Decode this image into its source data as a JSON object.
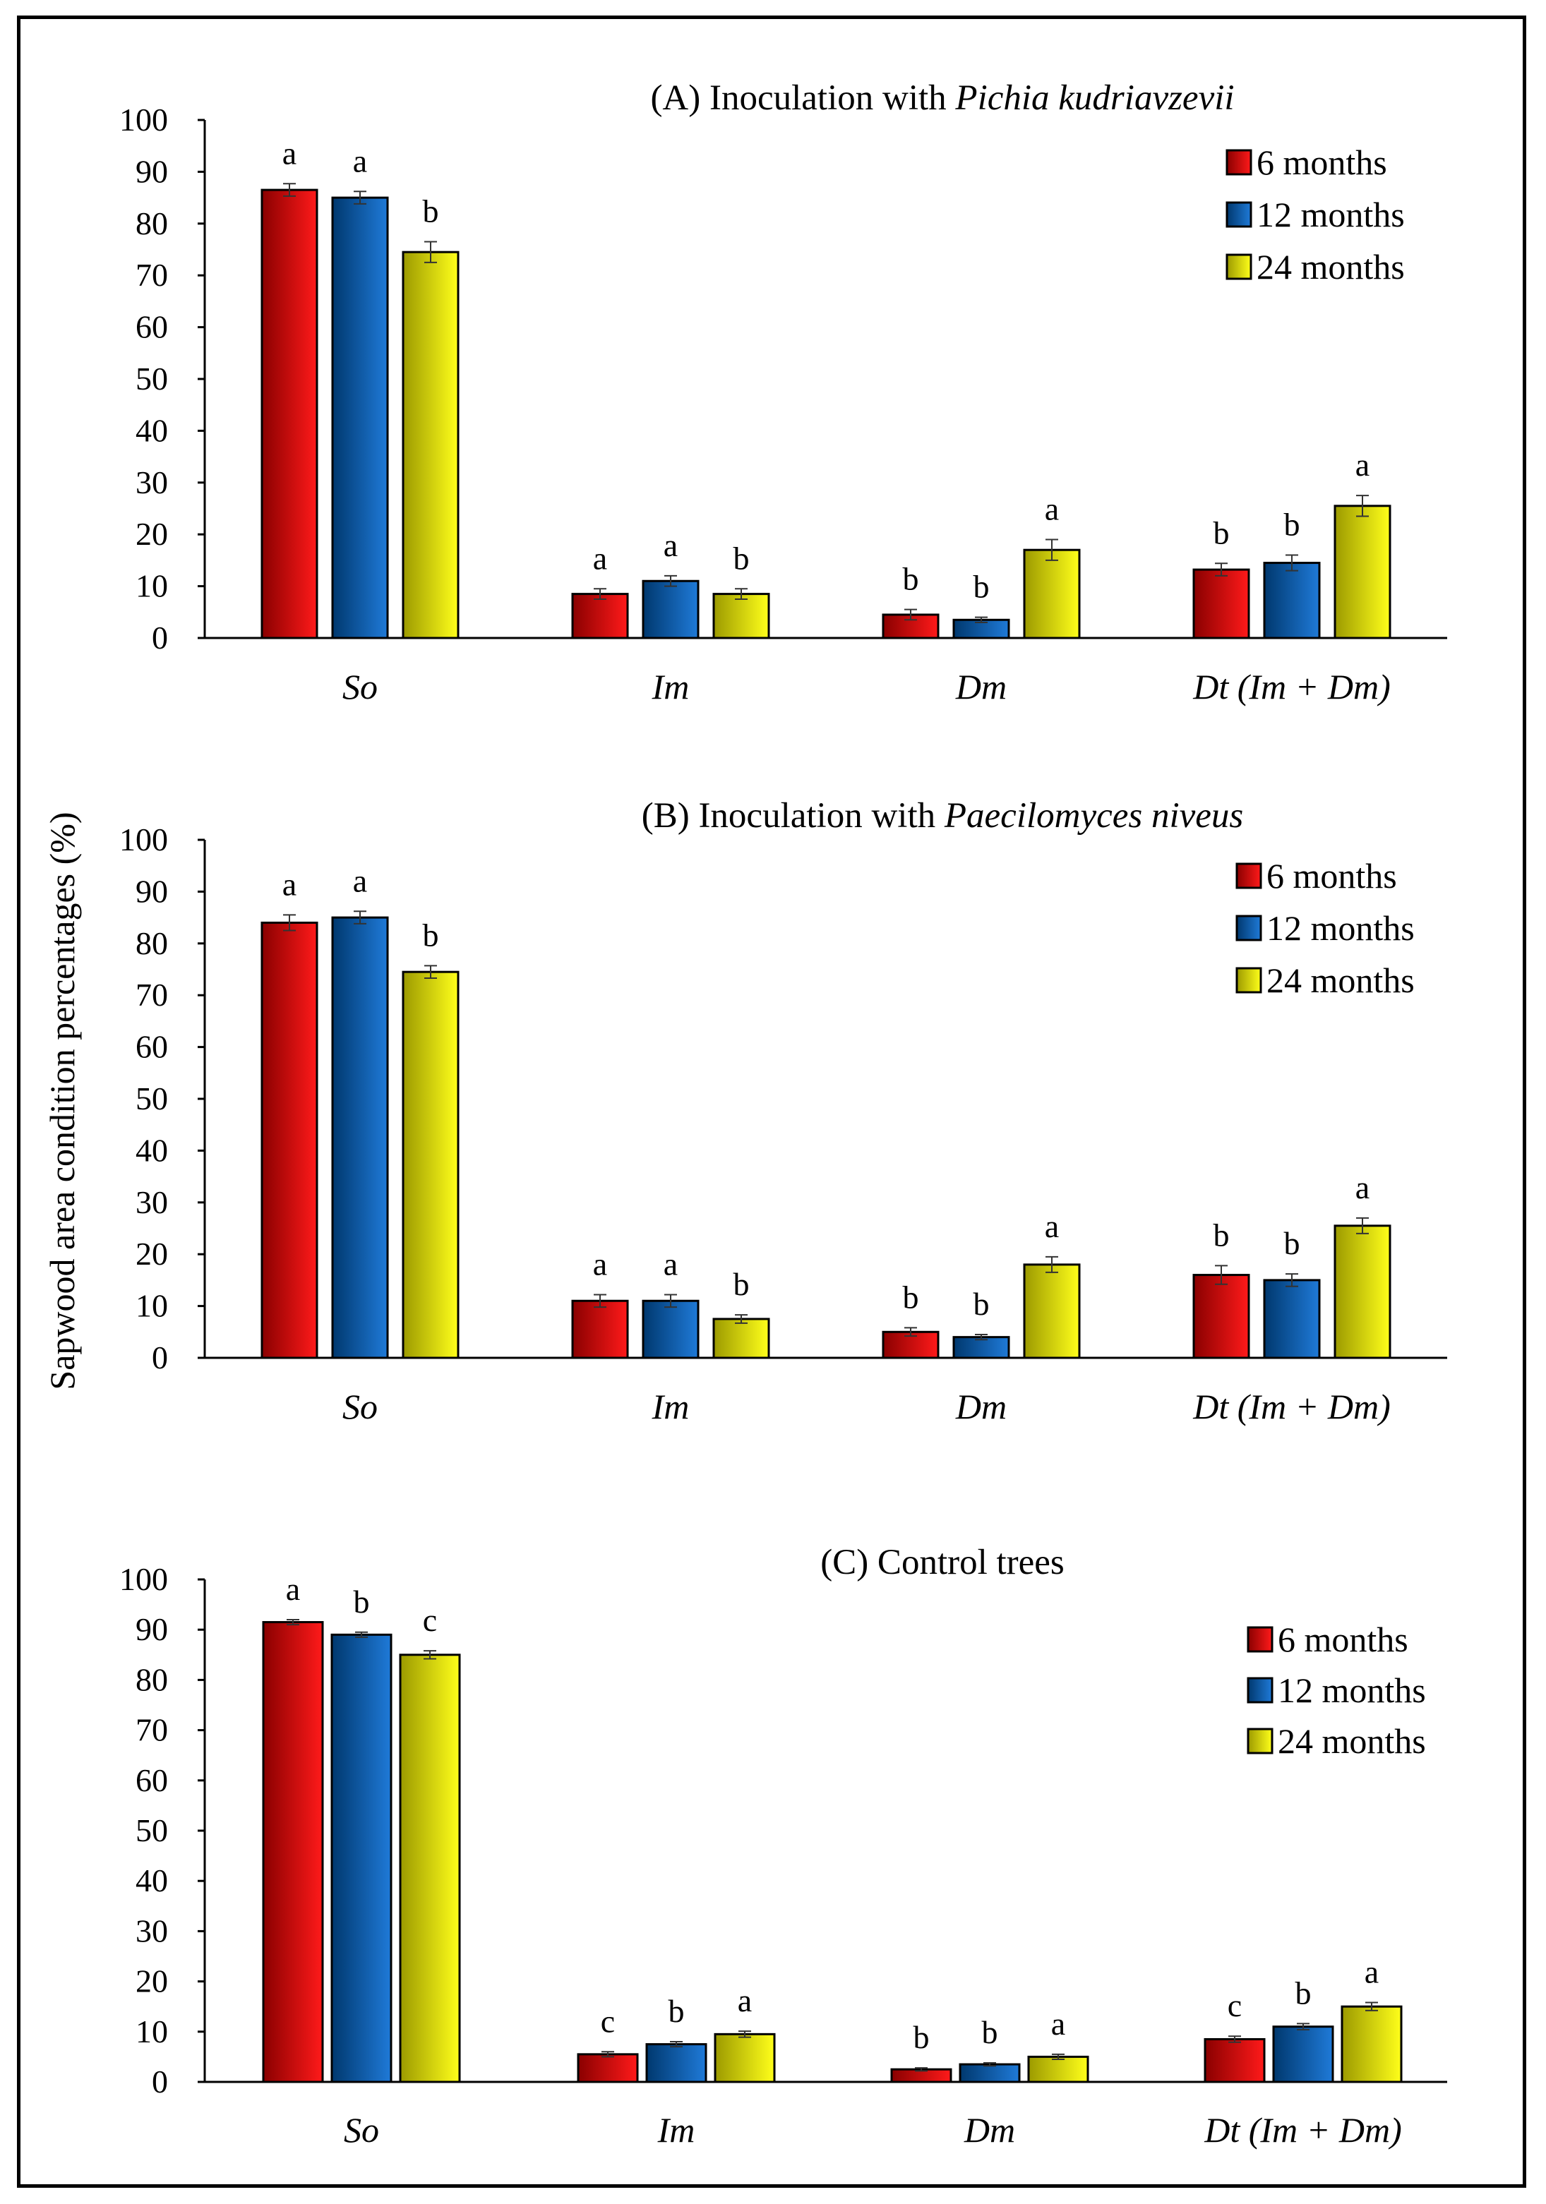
{
  "y_axis_label": "Sapwood area condition percentages (%)",
  "colors": {
    "6 months": "#e00000",
    "12 months": "#0a5fb4",
    "24 months": "#f0ec00"
  },
  "chart_data": [
    {
      "type": "bar",
      "title_prefix": "(A) Inoculation with ",
      "title_italic": "Pichia kudriavzevii",
      "categories": [
        "So",
        "Im",
        "Dm",
        "Dt (Im + Dm)"
      ],
      "ylim": [
        0,
        100
      ],
      "yticks": [
        0,
        10,
        20,
        30,
        40,
        50,
        60,
        70,
        80,
        90,
        100
      ],
      "legend": "top-right",
      "series": [
        {
          "name": "6 months",
          "values": [
            86.5,
            8.5,
            4.5,
            13.2
          ],
          "errors": [
            1.2,
            1.0,
            1.0,
            1.2
          ],
          "letters": [
            "a",
            "a",
            "b",
            "b"
          ]
        },
        {
          "name": "12 months",
          "values": [
            85.0,
            11.0,
            3.5,
            14.5
          ],
          "errors": [
            1.2,
            1.0,
            0.5,
            1.5
          ],
          "letters": [
            "a",
            "a",
            "b",
            "b"
          ]
        },
        {
          "name": "24 months",
          "values": [
            74.5,
            8.5,
            17.0,
            25.5
          ],
          "errors": [
            2.0,
            1.0,
            2.0,
            2.0
          ],
          "letters": [
            "b",
            "b",
            "a",
            "a"
          ]
        }
      ]
    },
    {
      "type": "bar",
      "title_prefix": "(B) Inoculation with ",
      "title_italic": "Paecilomyces niveus",
      "categories": [
        "So",
        "Im",
        "Dm",
        "Dt (Im + Dm)"
      ],
      "ylim": [
        0,
        100
      ],
      "yticks": [
        0,
        10,
        20,
        30,
        40,
        50,
        60,
        70,
        80,
        90,
        100
      ],
      "legend": "top-right",
      "series": [
        {
          "name": "6 months",
          "values": [
            84.0,
            11.0,
            5.0,
            16.0
          ],
          "errors": [
            1.5,
            1.2,
            0.8,
            1.8
          ],
          "letters": [
            "a",
            "a",
            "b",
            "b"
          ]
        },
        {
          "name": "12 months",
          "values": [
            85.0,
            11.0,
            4.0,
            15.0
          ],
          "errors": [
            1.2,
            1.2,
            0.5,
            1.2
          ],
          "letters": [
            "a",
            "a",
            "b",
            "b"
          ]
        },
        {
          "name": "24 months",
          "values": [
            74.5,
            7.5,
            18.0,
            25.5
          ],
          "errors": [
            1.2,
            0.8,
            1.5,
            1.5
          ],
          "letters": [
            "b",
            "b",
            "a",
            "a"
          ]
        }
      ]
    },
    {
      "type": "bar",
      "title_prefix": "(C) Control trees",
      "title_italic": "",
      "categories": [
        "So",
        "Im",
        "Dm",
        "Dt (Im + Dm)"
      ],
      "ylim": [
        0,
        100
      ],
      "yticks": [
        0,
        10,
        20,
        30,
        40,
        50,
        60,
        70,
        80,
        90,
        100
      ],
      "legend": "top-right",
      "series": [
        {
          "name": "6 months",
          "values": [
            91.5,
            5.5,
            2.5,
            8.5
          ],
          "errors": [
            0.5,
            0.5,
            0.3,
            0.6
          ],
          "letters": [
            "a",
            "c",
            "b",
            "c"
          ]
        },
        {
          "name": "12 months",
          "values": [
            89.0,
            7.5,
            3.5,
            11.0
          ],
          "errors": [
            0.5,
            0.5,
            0.3,
            0.6
          ],
          "letters": [
            "b",
            "b",
            "b",
            "b"
          ]
        },
        {
          "name": "24 months",
          "values": [
            85.0,
            9.5,
            5.0,
            15.0
          ],
          "errors": [
            0.8,
            0.6,
            0.5,
            0.8
          ],
          "letters": [
            "c",
            "a",
            "a",
            "a"
          ]
        }
      ]
    }
  ]
}
